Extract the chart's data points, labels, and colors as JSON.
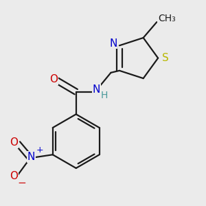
{
  "background_color": "#ebebeb",
  "bond_color": "#1a1a1a",
  "colors": {
    "N": "#0000cc",
    "O": "#cc0000",
    "S": "#b8b800",
    "C": "#1a1a1a",
    "H": "#4a9a9a",
    "plus": "#0000cc"
  },
  "figsize": [
    3.0,
    3.0
  ],
  "dpi": 100,
  "bond_lw": 1.6,
  "font_size": 11
}
